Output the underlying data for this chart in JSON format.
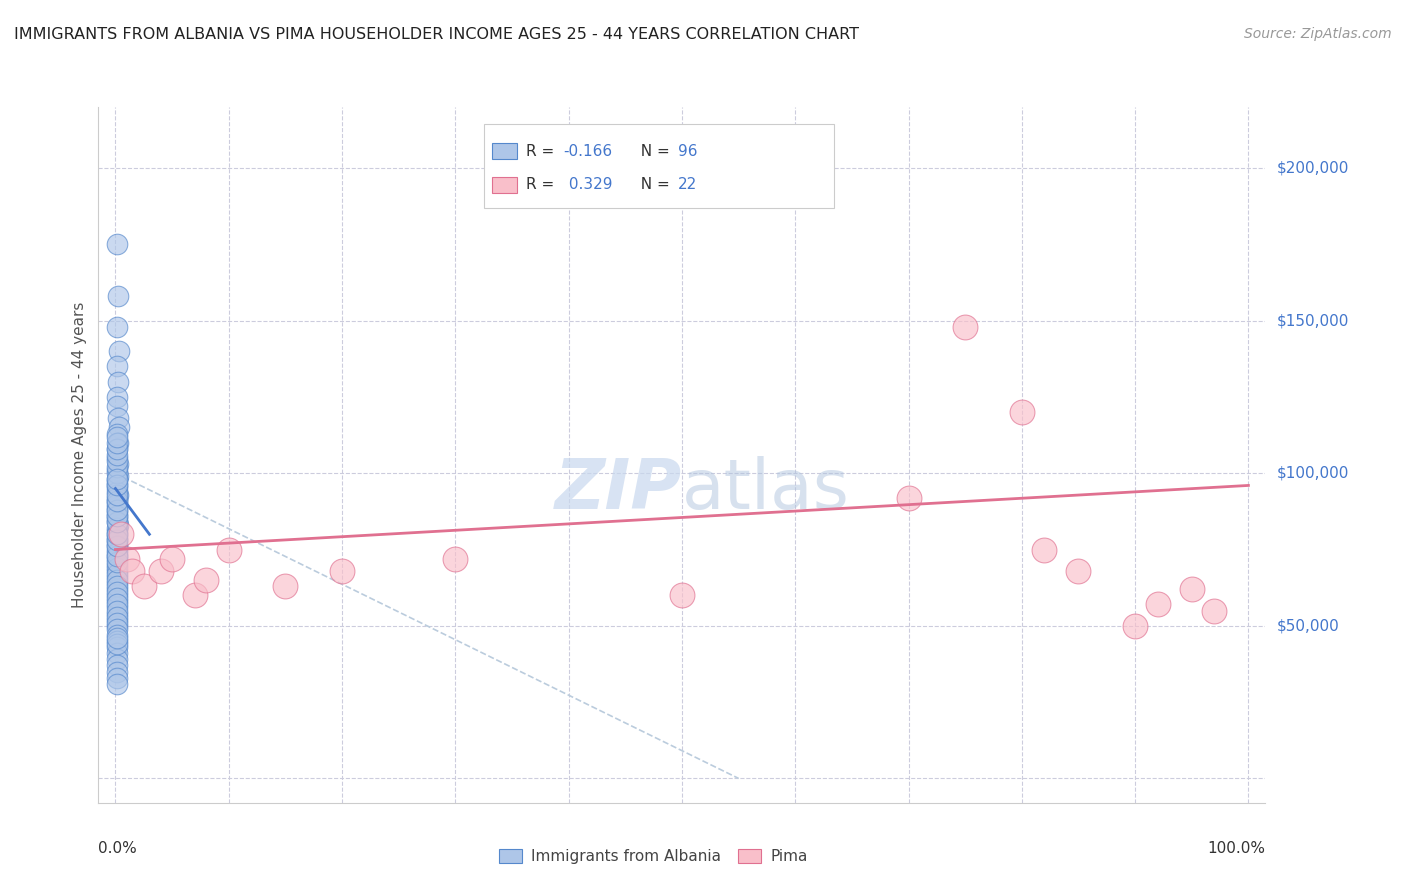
{
  "title": "IMMIGRANTS FROM ALBANIA VS PIMA HOUSEHOLDER INCOME AGES 25 - 44 YEARS CORRELATION CHART",
  "source": "Source: ZipAtlas.com",
  "ylabel": "Householder Income Ages 25 - 44 years",
  "legend_label1": "Immigrants from Albania",
  "legend_label2": "Pima",
  "blue_color": "#AEC6E8",
  "blue_edge_color": "#5588CC",
  "pink_color": "#F9BFCA",
  "pink_edge_color": "#E07090",
  "blue_line_color": "#4477CC",
  "pink_line_color": "#E07090",
  "dashed_line_color": "#BBCCDD",
  "background_color": "#FFFFFF",
  "grid_color": "#CCCCDD",
  "ytick_color": "#4477CC",
  "blue_scatter_x": [
    0.001,
    0.002,
    0.001,
    0.003,
    0.001,
    0.002,
    0.001,
    0.001,
    0.002,
    0.003,
    0.001,
    0.002,
    0.001,
    0.001,
    0.002,
    0.001,
    0.002,
    0.001,
    0.001,
    0.002,
    0.001,
    0.001,
    0.001,
    0.001,
    0.002,
    0.001,
    0.001,
    0.001,
    0.001,
    0.001,
    0.001,
    0.001,
    0.001,
    0.001,
    0.001,
    0.001,
    0.001,
    0.001,
    0.001,
    0.001,
    0.001,
    0.001,
    0.001,
    0.001,
    0.001,
    0.001,
    0.001,
    0.001,
    0.001,
    0.001,
    0.001,
    0.001,
    0.001,
    0.001,
    0.001,
    0.001,
    0.001,
    0.001,
    0.001,
    0.001,
    0.001,
    0.001,
    0.001,
    0.001,
    0.001,
    0.001,
    0.001,
    0.001,
    0.001,
    0.001,
    0.001,
    0.001,
    0.001,
    0.001,
    0.001,
    0.001,
    0.001,
    0.001,
    0.001,
    0.001,
    0.001,
    0.001,
    0.001,
    0.001,
    0.001,
    0.001,
    0.001,
    0.001,
    0.001,
    0.001,
    0.001,
    0.001,
    0.001,
    0.001,
    0.001,
    0.001
  ],
  "blue_scatter_y": [
    175000,
    158000,
    148000,
    140000,
    135000,
    130000,
    125000,
    122000,
    118000,
    115000,
    113000,
    110000,
    108000,
    105000,
    103000,
    101000,
    99000,
    97000,
    95000,
    93000,
    91000,
    89000,
    87000,
    85000,
    83000,
    81000,
    79000,
    77000,
    75000,
    73000,
    72000,
    70000,
    68000,
    66000,
    64000,
    62000,
    60000,
    58000,
    56000,
    54000,
    52000,
    50000,
    98000,
    96000,
    94000,
    92000,
    90000,
    88000,
    86000,
    84000,
    82000,
    80000,
    78000,
    76000,
    74000,
    100000,
    102000,
    104000,
    106000,
    108000,
    69000,
    67000,
    65000,
    63000,
    61000,
    59000,
    57000,
    55000,
    53000,
    51000,
    49000,
    47000,
    45000,
    43000,
    41000,
    39000,
    37000,
    35000,
    33000,
    31000,
    110000,
    112000,
    71000,
    73000,
    76000,
    78000,
    80000,
    84000,
    86000,
    88000,
    91000,
    93000,
    96000,
    98000,
    44000,
    46000
  ],
  "pink_scatter_x": [
    0.005,
    0.01,
    0.015,
    0.025,
    0.04,
    0.05,
    0.07,
    0.08,
    0.1,
    0.15,
    0.2,
    0.3,
    0.5,
    0.7,
    0.75,
    0.8,
    0.82,
    0.85,
    0.9,
    0.92,
    0.95,
    0.97
  ],
  "pink_scatter_y": [
    80000,
    72000,
    68000,
    63000,
    68000,
    72000,
    60000,
    65000,
    75000,
    63000,
    68000,
    72000,
    60000,
    92000,
    148000,
    120000,
    75000,
    68000,
    50000,
    57000,
    62000,
    55000
  ],
  "blue_trend_x": [
    0.0,
    0.03
  ],
  "blue_trend_y": [
    95000,
    80000
  ],
  "pink_trend_x": [
    0.0,
    1.0
  ],
  "pink_trend_y": [
    75000,
    96000
  ],
  "dashed_trend_x": [
    0.0,
    0.55
  ],
  "dashed_trend_y": [
    100000,
    0
  ],
  "yticks": [
    0,
    50000,
    100000,
    150000,
    200000
  ],
  "ytick_labels": [
    "",
    "$50,000",
    "$100,000",
    "$150,000",
    "$200,000"
  ],
  "xlim": [
    -0.015,
    1.015
  ],
  "ylim": [
    -8000,
    220000
  ]
}
